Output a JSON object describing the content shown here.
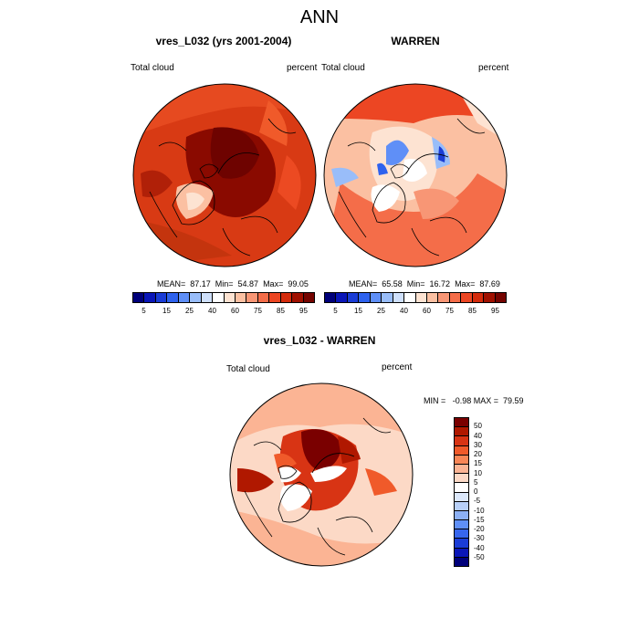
{
  "title": "ANN",
  "panels": {
    "left": {
      "title": "vres_L032 (yrs 2001-2004)",
      "left_label": "Total cloud",
      "right_label": "percent",
      "stats": "MEAN=  87.17  Min=  54.87  Max=  99.05"
    },
    "right": {
      "title": "WARREN",
      "left_label": "Total cloud",
      "right_label": "percent",
      "stats": "MEAN=  65.58  Min=  16.72  Max=  87.69"
    },
    "diff": {
      "title": "vres_L032 - WARREN",
      "left_label": "Total cloud",
      "right_label": "percent",
      "stats": "MIN =   -0.98 MAX =  79.59"
    }
  },
  "colorbar_abs": {
    "colors": [
      "#00007a",
      "#0a16b8",
      "#1a3cd6",
      "#2e62ee",
      "#5f8ff7",
      "#99bdf9",
      "#cfe0fb",
      "#ffffff",
      "#fde3d2",
      "#fbc0a2",
      "#f89675",
      "#f46d49",
      "#ec4623",
      "#d42b0c",
      "#a01000",
      "#750400"
    ],
    "ticks": [
      "5",
      "15",
      "25",
      "40",
      "60",
      "75",
      "85",
      "95"
    ]
  },
  "colorbar_diff": {
    "colors": [
      "#7a0000",
      "#b01800",
      "#d83414",
      "#f05a2a",
      "#f88656",
      "#fbb494",
      "#fcd9c6",
      "#ffffff",
      "#dce8fb",
      "#b8d0f8",
      "#8cb0f4",
      "#5f8ff7",
      "#3766ee",
      "#1a3cd6",
      "#0a16b8",
      "#00007a"
    ],
    "ticks": [
      "50",
      "40",
      "30",
      "20",
      "15",
      "10",
      "5",
      "0",
      "-5",
      "-10",
      "-15",
      "-20",
      "-30",
      "-40",
      "-50"
    ]
  }
}
